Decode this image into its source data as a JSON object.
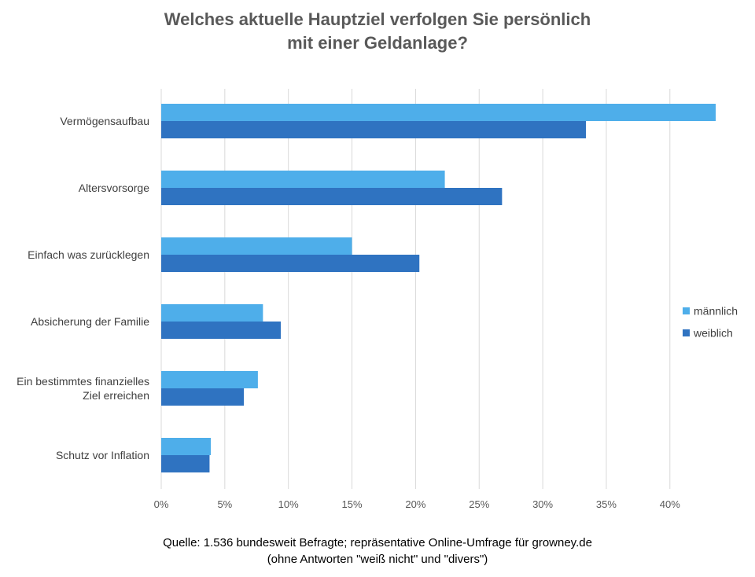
{
  "title": {
    "line1": "Welches aktuelle Hauptziel verfolgen Sie persönlich",
    "line2": "mit einer Geldanlage?"
  },
  "source": {
    "line1": "Quelle: 1.536 bundesweit Befragte; repräsentative Online-Umfrage für growney.de",
    "line2": "(ohne Antworten \"weiß nicht\" und \"divers\")"
  },
  "chart_data": {
    "type": "bar",
    "orientation": "horizontal",
    "title": "Welches aktuelle Hauptziel verfolgen Sie persönlich mit einer Geldanlage?",
    "categories": [
      [
        "Vermögensaufbau"
      ],
      [
        "Altersvorsorge"
      ],
      [
        "Einfach was zurücklegen"
      ],
      [
        "Absicherung der Familie"
      ],
      [
        "Ein bestimmtes finanzielles",
        "Ziel erreichen"
      ],
      [
        "Schutz vor Inflation"
      ]
    ],
    "series": [
      {
        "name": "männlich",
        "color": "#4eaeea",
        "values": [
          43.6,
          22.3,
          15.0,
          8.0,
          7.6,
          3.9
        ]
      },
      {
        "name": "weiblich",
        "color": "#2f73c1",
        "values": [
          33.4,
          26.8,
          20.3,
          9.4,
          6.5,
          3.8
        ]
      }
    ],
    "xlim": [
      0,
      45
    ],
    "xticks": [
      "0%",
      "5%",
      "10%",
      "15%",
      "20%",
      "25%",
      "30%",
      "35%",
      "40%"
    ],
    "xtick_values": [
      0,
      5,
      10,
      15,
      20,
      25,
      30,
      35,
      40
    ],
    "grid": true,
    "legend_position": "right",
    "xlabel": "",
    "ylabel": ""
  }
}
